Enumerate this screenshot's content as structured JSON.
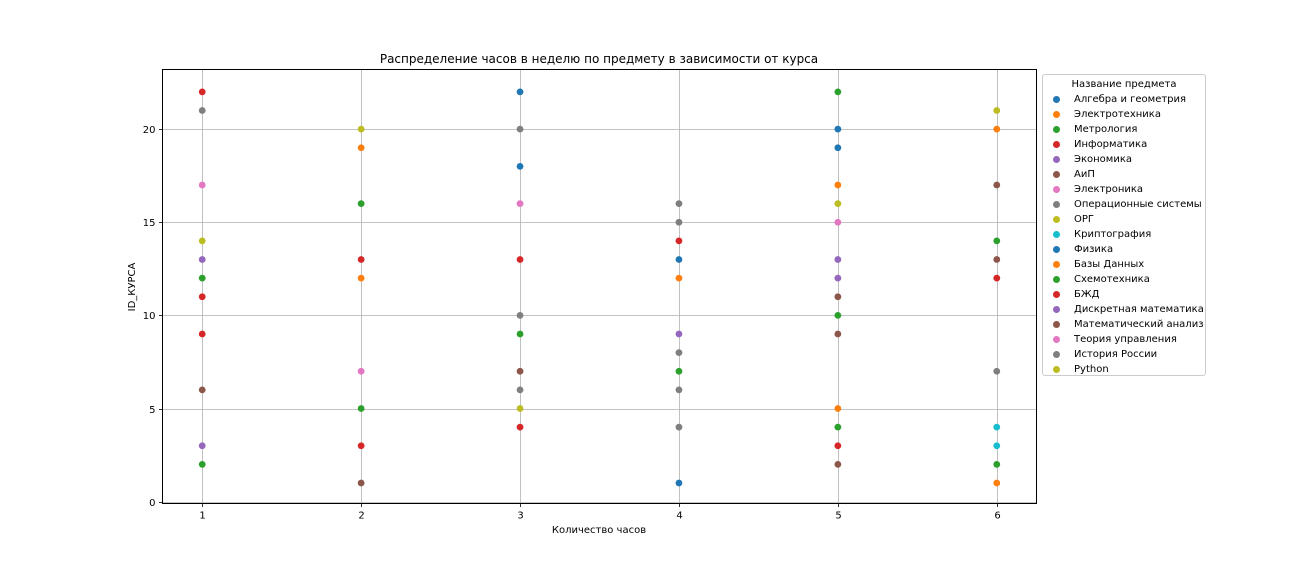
{
  "chart_data": {
    "type": "scatter",
    "title": "Распределение часов в неделю по предмету в зависимости от курса",
    "xlabel": "Количество часов",
    "ylabel": "ID_КУРСА",
    "xticks": [
      "1",
      "2",
      "3",
      "4",
      "5",
      "6"
    ],
    "yticks": [
      "0",
      "5",
      "10",
      "15",
      "20"
    ],
    "xlim": [
      0.75,
      6.25
    ],
    "ylim": [
      -0.1,
      23.2
    ],
    "grid": true,
    "legend_position": "outside-right",
    "legend_title": "Название предмета",
    "series": [
      {
        "name": "Алгебра и геометрия",
        "color": "#1f77b4",
        "points": [
          [
            3,
            22
          ],
          [
            5,
            20
          ]
        ]
      },
      {
        "name": "Электротехника",
        "color": "#ff7f0e",
        "points": [
          [
            2,
            19
          ],
          [
            5,
            17
          ],
          [
            6,
            20
          ]
        ]
      },
      {
        "name": "Метрология",
        "color": "#2ca02c",
        "points": [
          [
            2,
            16
          ],
          [
            5,
            22
          ]
        ]
      },
      {
        "name": "Информатика",
        "color": "#d62728",
        "points": [
          [
            1,
            22
          ],
          [
            3,
            13
          ],
          [
            4,
            14
          ]
        ]
      },
      {
        "name": "Экономика",
        "color": "#9467bd",
        "points": [
          [
            1,
            13
          ],
          [
            5,
            12
          ]
        ]
      },
      {
        "name": "АиП",
        "color": "#8c564b",
        "points": [
          [
            3,
            7
          ],
          [
            6,
            17
          ]
        ]
      },
      {
        "name": "Электроника",
        "color": "#e377c2",
        "points": [
          [
            1,
            17
          ],
          [
            3,
            16
          ],
          [
            5,
            15
          ]
        ]
      },
      {
        "name": "Операционные системы",
        "color": "#7f7f7f",
        "points": [
          [
            1,
            21
          ],
          [
            3,
            20
          ],
          [
            4,
            16
          ]
        ]
      },
      {
        "name": "ОРГ",
        "color": "#bcbd22",
        "points": [
          [
            1,
            14
          ],
          [
            2,
            20
          ],
          [
            5,
            16
          ]
        ]
      },
      {
        "name": "Криптография",
        "color": "#17becf",
        "points": [
          [
            6,
            4
          ],
          [
            6,
            3
          ]
        ]
      },
      {
        "name": "Физика",
        "color": "#1f77b4",
        "points": [
          [
            3,
            18
          ],
          [
            4,
            13
          ],
          [
            5,
            19
          ],
          [
            4,
            1
          ]
        ]
      },
      {
        "name": "Базы Данных",
        "color": "#ff7f0e",
        "points": [
          [
            2,
            12
          ],
          [
            4,
            12
          ],
          [
            5,
            5
          ],
          [
            6,
            1
          ]
        ]
      },
      {
        "name": "Схемотехника",
        "color": "#2ca02c",
        "points": [
          [
            1,
            12
          ],
          [
            2,
            5
          ],
          [
            3,
            9
          ],
          [
            4,
            7
          ],
          [
            5,
            10
          ],
          [
            6,
            14
          ],
          [
            1,
            2
          ],
          [
            5,
            4
          ],
          [
            6,
            2
          ]
        ]
      },
      {
        "name": "БЖД",
        "color": "#d62728",
        "points": [
          [
            1,
            11
          ],
          [
            1,
            9
          ],
          [
            2,
            13
          ],
          [
            3,
            4
          ],
          [
            5,
            3
          ],
          [
            6,
            12
          ],
          [
            2,
            3
          ]
        ]
      },
      {
        "name": "Дискретная математика",
        "color": "#9467bd",
        "points": [
          [
            1,
            3
          ],
          [
            4,
            9
          ],
          [
            5,
            13
          ]
        ]
      },
      {
        "name": "Математический анализ",
        "color": "#8c564b",
        "points": [
          [
            1,
            6
          ],
          [
            2,
            1
          ],
          [
            5,
            11
          ],
          [
            5,
            9
          ],
          [
            6,
            13
          ],
          [
            5,
            2
          ]
        ]
      },
      {
        "name": "Теория управления",
        "color": "#e377c2",
        "points": [
          [
            2,
            7
          ]
        ]
      },
      {
        "name": "История России",
        "color": "#7f7f7f",
        "points": [
          [
            3,
            10
          ],
          [
            3,
            6
          ],
          [
            4,
            15
          ],
          [
            4,
            8
          ],
          [
            4,
            6
          ],
          [
            4,
            4
          ],
          [
            6,
            7
          ]
        ]
      },
      {
        "name": "Python",
        "color": "#bcbd22",
        "points": [
          [
            3,
            5
          ],
          [
            6,
            21
          ]
        ]
      }
    ]
  }
}
